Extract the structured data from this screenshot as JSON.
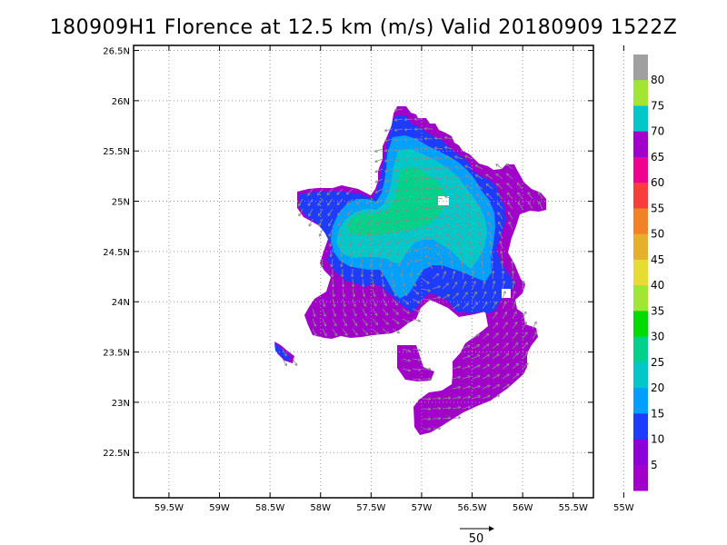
{
  "title": "180909H1 Florence at 12.5 km (m/s) Valid 20180909  1522Z",
  "map": {
    "lon_labels": [
      "59.5W",
      "59W",
      "58.5W",
      "58W",
      "57.5W",
      "57W",
      "56.5W",
      "56W",
      "55.5W",
      "55W"
    ],
    "lon_values": [
      -59.5,
      -59,
      -58.5,
      -58,
      -57.5,
      -57,
      -56.5,
      -56,
      -55.5,
      -55
    ],
    "lat_labels": [
      "26.5N",
      "26N",
      "25.5N",
      "25N",
      "24.5N",
      "24N",
      "23.5N",
      "23N",
      "22.5N"
    ],
    "lat_values": [
      26.5,
      26,
      25.5,
      25,
      24.5,
      24,
      23.5,
      23,
      22.5
    ],
    "lon_range": [
      -59.85,
      -55.3
    ],
    "lat_range": [
      22.05,
      26.55
    ],
    "grid": "dotted"
  },
  "colorbar": {
    "labels": [
      "80",
      "75",
      "70",
      "65",
      "60",
      "55",
      "50",
      "45",
      "40",
      "35",
      "30",
      "25",
      "20",
      "15",
      "10",
      "5"
    ],
    "colors": [
      "#a0a0a0",
      "#a0e632",
      "#00c8c8",
      "#a000c8",
      "#f0008c",
      "#fa3c3c",
      "#f08228",
      "#e6af2d",
      "#e6dc32",
      "#a0e632",
      "#00dc00",
      "#00d28c",
      "#00c8c8",
      "#00a0ff",
      "#1e3cff",
      "#8c00dc",
      "#a000c8"
    ]
  },
  "reference_vector": {
    "label": "50"
  },
  "wind_field": {
    "units": "m/s",
    "regions": [
      {
        "name": "0-5",
        "color": "#a000c8"
      },
      {
        "name": "10-15",
        "color": "#1e3cff"
      },
      {
        "name": "15-20",
        "color": "#00a0ff"
      },
      {
        "name": "20-25",
        "color": "#00c8c8"
      },
      {
        "name": "25-30",
        "color": "#00d28c"
      }
    ]
  }
}
